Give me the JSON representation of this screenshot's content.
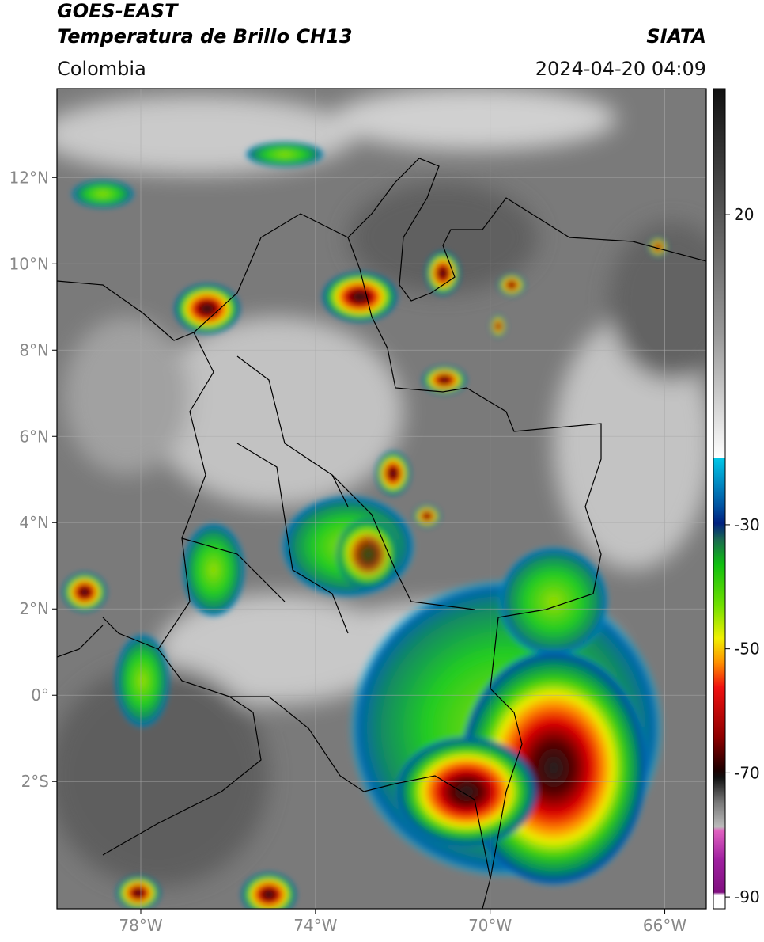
{
  "header": {
    "title": "GOES-EAST",
    "subtitle": "Temperatura de Brillo CH13",
    "source": "SIATA",
    "region": "Colombia",
    "datetime": "2024-04-20 04:09"
  },
  "map": {
    "xlim": [
      -79.92,
      -65.05
    ],
    "ylim": [
      -4.95,
      14.06
    ],
    "grid": true,
    "xticks": [
      {
        "value": -78,
        "label": "78°W"
      },
      {
        "value": -74,
        "label": "74°W"
      },
      {
        "value": -70,
        "label": "70°W"
      },
      {
        "value": -66,
        "label": "66°W"
      }
    ],
    "yticks": [
      {
        "value": 12,
        "label": "12°N"
      },
      {
        "value": 10,
        "label": "10°N"
      },
      {
        "value": 8,
        "label": "8°N"
      },
      {
        "value": 6,
        "label": "6°N"
      },
      {
        "value": 4,
        "label": "4°N"
      },
      {
        "value": 2,
        "label": "2°N"
      },
      {
        "value": 0,
        "label": "0°"
      },
      {
        "value": -2,
        "label": "2°S"
      }
    ]
  },
  "colorbar": {
    "lim": [
      -91.9,
      40.3
    ],
    "ticks": [
      20,
      -30,
      -50,
      -70,
      -90
    ]
  }
}
